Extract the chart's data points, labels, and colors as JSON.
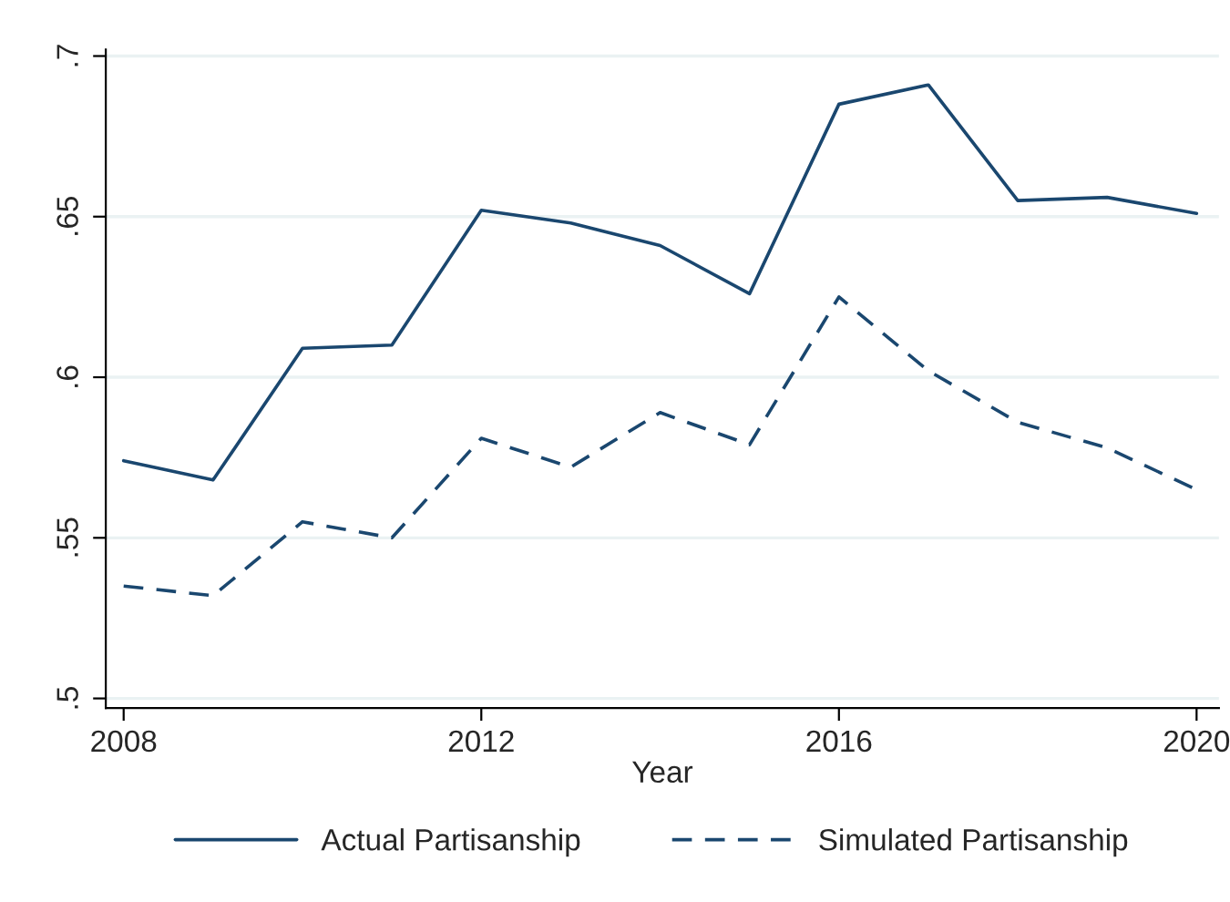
{
  "chart_data": {
    "type": "line",
    "xlabel": "Year",
    "x": [
      2008,
      2009,
      2010,
      2011,
      2012,
      2013,
      2014,
      2015,
      2016,
      2017,
      2018,
      2019,
      2020
    ],
    "series": [
      {
        "name": "Actual Partisanship",
        "color": "#1a476f",
        "line_style": "solid",
        "values": [
          0.574,
          0.568,
          0.609,
          0.61,
          0.652,
          0.648,
          0.641,
          0.626,
          0.685,
          0.691,
          0.655,
          0.656,
          0.651
        ]
      },
      {
        "name": "Simulated Partisanship",
        "color": "#1a476f",
        "line_style": "dashed",
        "values": [
          0.535,
          0.532,
          0.555,
          0.55,
          0.581,
          0.572,
          0.589,
          0.579,
          0.625,
          0.602,
          0.586,
          0.578,
          0.565
        ]
      }
    ],
    "xlim": [
      2007.8,
      2020.25
    ],
    "xticks": [
      2008,
      2012,
      2016,
      2020
    ],
    "ylim": [
      0.497,
      0.702
    ],
    "yticks": [
      {
        "value": 0.5,
        "label": ".5"
      },
      {
        "value": 0.55,
        "label": ".55"
      },
      {
        "value": 0.6,
        "label": ".6"
      },
      {
        "value": 0.65,
        "label": ".65"
      },
      {
        "value": 0.7,
        "label": ".7"
      }
    ],
    "grid": "y",
    "legend": "bottom",
    "marker": "none"
  }
}
